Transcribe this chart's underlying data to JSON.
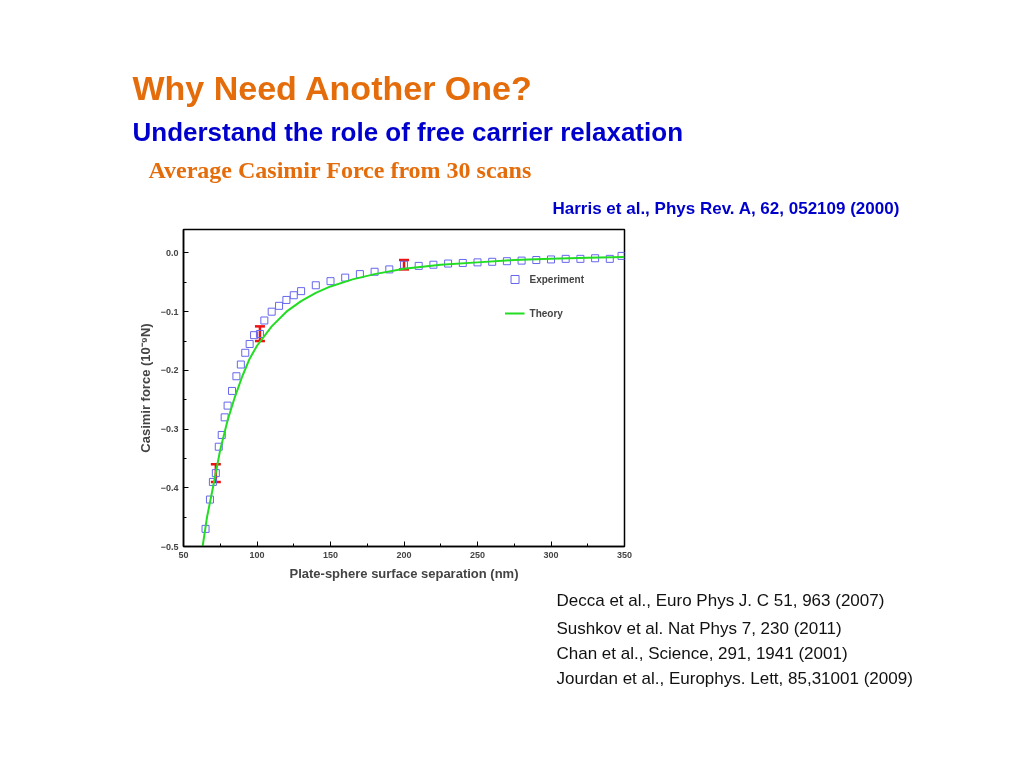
{
  "chart_data": {
    "type": "scatter",
    "title": "Why Need Another One?",
    "subtitle": "Understand the role of free carrier relaxation",
    "annotations": [
      "Average Casimir Force from  30 scans",
      "Harris et al., Phys Rev. A, 62, 052109 (2000)",
      "Decca et al., Euro Phys J. C 51, 963 (2007)",
      "Sushkov et al. Nat Phys 7, 230 (2011)",
      "Chan et al., Science, 291, 1941 (2001)",
      "Jourdan et al., Europhys. Lett, 85,31001 (2009)"
    ],
    "xlabel": "Plate-sphere surface separation (nm)",
    "ylabel": "Casimir force (10⁻⁹N)",
    "xlim": [
      50,
      350
    ],
    "xticks": [
      50,
      100,
      150,
      200,
      250,
      300,
      350
    ],
    "ylim": [
      -0.5,
      0.04
    ],
    "yticks": [
      -0.5,
      -0.4,
      -0.3,
      -0.2,
      -0.1,
      {
        "value": 0,
        "label": "0.0"
      }
    ],
    "grid": false,
    "legend": "top right",
    "series": [
      {
        "name": "Experiment",
        "marker": "square",
        "color": "#6666ee",
        "x": [
          65,
          68,
          70,
          72,
          74,
          76,
          78,
          80,
          83,
          86,
          89,
          92,
          95,
          98,
          102,
          105,
          110,
          115,
          120,
          125,
          130,
          140,
          150,
          160,
          170,
          180,
          190,
          200,
          210,
          220,
          230,
          240,
          250,
          260,
          270,
          280,
          290,
          300,
          310,
          320,
          330,
          340,
          348
        ],
        "values": [
          -0.47,
          -0.42,
          -0.39,
          -0.375,
          -0.33,
          -0.31,
          -0.28,
          -0.26,
          -0.235,
          -0.21,
          -0.19,
          -0.17,
          -0.155,
          -0.14,
          -0.138,
          -0.115,
          -0.1,
          -0.09,
          -0.08,
          -0.072,
          -0.065,
          -0.055,
          -0.048,
          -0.042,
          -0.036,
          -0.032,
          -0.028,
          -0.02,
          -0.022,
          -0.02,
          -0.018,
          -0.017,
          -0.016,
          -0.015,
          -0.014,
          -0.013,
          -0.012,
          -0.011,
          -0.01,
          -0.01,
          -0.009,
          -0.01,
          -0.005
        ],
        "errors": [
          null,
          null,
          null,
          [
            -0.39,
            -0.36
          ],
          null,
          null,
          null,
          null,
          null,
          null,
          null,
          null,
          null,
          null,
          [
            -0.15,
            -0.125
          ],
          null,
          null,
          null,
          null,
          null,
          null,
          null,
          null,
          null,
          null,
          null,
          null,
          [
            -0.028,
            -0.012
          ],
          null,
          null,
          null,
          null,
          null,
          null,
          null,
          null,
          null,
          null,
          null,
          null,
          null,
          null,
          null
        ]
      },
      {
        "name": "Theory",
        "type": "line",
        "color": "#22dd22",
        "line_style": "solid",
        "x": [
          63,
          66,
          70,
          75,
          80,
          85,
          90,
          95,
          100,
          110,
          120,
          130,
          140,
          150,
          165,
          180,
          200,
          225,
          250,
          275,
          300,
          325,
          350
        ],
        "values": [
          -0.5,
          -0.45,
          -0.4,
          -0.335,
          -0.285,
          -0.245,
          -0.21,
          -0.18,
          -0.158,
          -0.125,
          -0.1,
          -0.082,
          -0.068,
          -0.057,
          -0.045,
          -0.036,
          -0.027,
          -0.02,
          -0.016,
          -0.012,
          -0.01,
          -0.008,
          -0.007
        ]
      }
    ]
  }
}
